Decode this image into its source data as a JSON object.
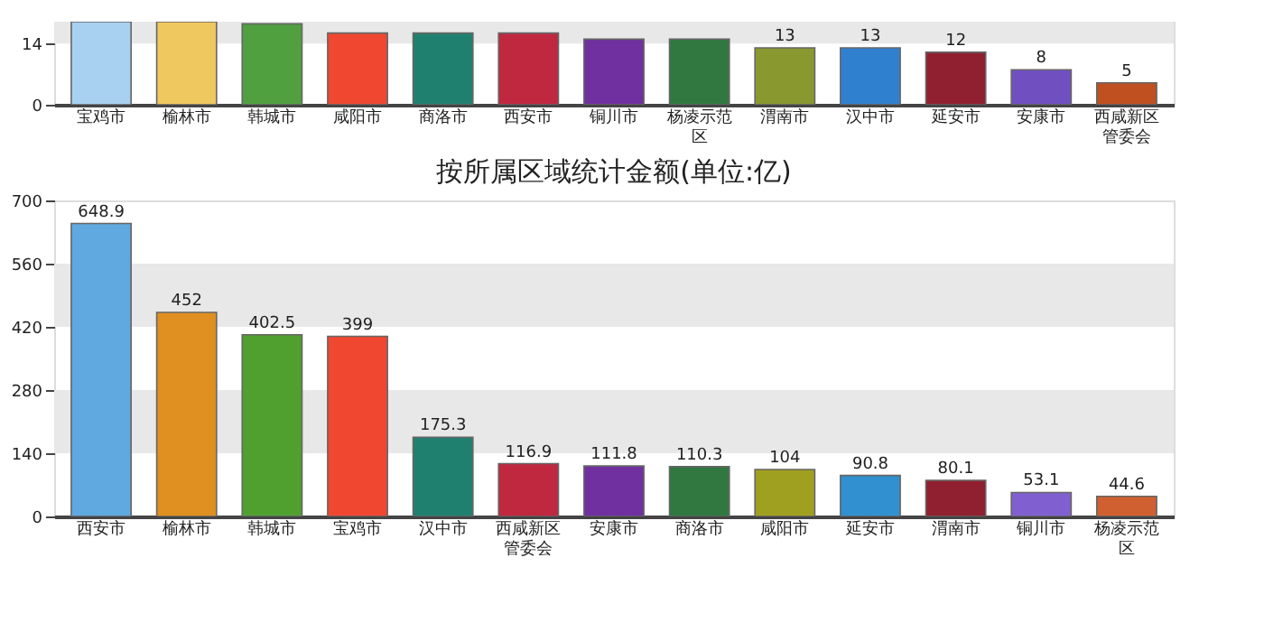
{
  "chart_data": [
    {
      "type": "bar",
      "categories": [
        "宝鸡市",
        "榆林市",
        "韩城市",
        "咸阳市",
        "商洛市",
        "西安市",
        "铜川市",
        "杨凌示范区",
        "渭南市",
        "汉中市",
        "延安市",
        "安康市",
        "西咸新区管委会"
      ],
      "values": [
        19,
        19,
        18.5,
        16.4,
        16.4,
        16.4,
        15,
        15,
        13,
        13,
        12,
        8,
        5
      ],
      "colors": [
        "#a8d0f0",
        "#f0c860",
        "#50a040",
        "#f04830",
        "#208070",
        "#c02840",
        "#7030a0",
        "#307840",
        "#8a9830",
        "#3080d0",
        "#902030",
        "#7050c0",
        "#c05020"
      ],
      "value_labels": [
        null,
        null,
        null,
        null,
        null,
        null,
        null,
        null,
        "13",
        "13",
        "12",
        "8",
        "5"
      ],
      "ylim": [
        0,
        19
      ],
      "yticks": [
        0,
        14
      ],
      "bands": [
        {
          "axis": "y",
          "from": 14,
          "to": 19,
          "color": "#e8e8e8"
        }
      ]
    },
    {
      "type": "bar",
      "title": "按所属区域统计金额(单位:亿)",
      "categories": [
        "西安市",
        "榆林市",
        "韩城市",
        "宝鸡市",
        "汉中市",
        "西咸新区管委会",
        "安康市",
        "商洛市",
        "咸阳市",
        "延安市",
        "渭南市",
        "铜川市",
        "杨凌示范区"
      ],
      "values": [
        648.9,
        452,
        402.5,
        399,
        175.3,
        116.9,
        111.8,
        110.3,
        104,
        90.8,
        80.1,
        53.1,
        44.6
      ],
      "colors": [
        "#60a8e0",
        "#e09020",
        "#50a030",
        "#f04830",
        "#208070",
        "#c02840",
        "#7030a0",
        "#307840",
        "#a0a020",
        "#3090d0",
        "#902030",
        "#8060d0",
        "#d06030"
      ],
      "data_labels": true,
      "ylim": [
        0,
        700
      ],
      "yticks": [
        0,
        140,
        280,
        420,
        560,
        700
      ],
      "bands": [
        {
          "axis": "y",
          "from": 140,
          "to": 280,
          "color": "#e8e8e8"
        },
        {
          "axis": "y",
          "from": 420,
          "to": 560,
          "color": "#e8e8e8"
        }
      ]
    }
  ]
}
